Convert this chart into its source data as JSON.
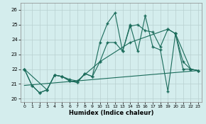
{
  "xlabel": "Humidex (Indice chaleur)",
  "background_color": "#d4eded",
  "grid_color": "#b8d0d0",
  "line_color": "#1a6b5a",
  "xlim": [
    -0.5,
    23.5
  ],
  "ylim": [
    19.8,
    26.5
  ],
  "yticks": [
    20,
    21,
    22,
    23,
    24,
    25,
    26
  ],
  "xticks": [
    0,
    1,
    2,
    3,
    4,
    5,
    6,
    7,
    8,
    9,
    10,
    11,
    12,
    13,
    14,
    15,
    16,
    17,
    18,
    19,
    20,
    21,
    22,
    23
  ],
  "line1_x": [
    0,
    1,
    2,
    3,
    4,
    5,
    6,
    7,
    8,
    9,
    10,
    11,
    12,
    13,
    14,
    15,
    16,
    17,
    18,
    19,
    20,
    21,
    22,
    23
  ],
  "line1_y": [
    22.0,
    20.9,
    20.4,
    20.6,
    21.6,
    21.5,
    21.2,
    21.1,
    21.7,
    21.5,
    23.8,
    25.1,
    25.8,
    23.2,
    24.9,
    25.0,
    24.6,
    24.5,
    23.5,
    24.7,
    24.4,
    22.5,
    22.0,
    21.9
  ],
  "line2_x": [
    0,
    1,
    2,
    3,
    4,
    5,
    6,
    7,
    8,
    9,
    10,
    11,
    12,
    13,
    14,
    15,
    16,
    17,
    18,
    19,
    20,
    21,
    22,
    23
  ],
  "line2_y": [
    22.0,
    20.9,
    20.4,
    20.6,
    21.6,
    21.5,
    21.2,
    21.1,
    21.7,
    21.5,
    22.5,
    23.8,
    23.8,
    23.2,
    25.0,
    23.2,
    25.6,
    23.5,
    23.3,
    20.5,
    24.4,
    22.0,
    22.0,
    21.9
  ],
  "line3_x": [
    0,
    3,
    4,
    5,
    6,
    7,
    10,
    14,
    19,
    20,
    22,
    23
  ],
  "line3_y": [
    22.0,
    20.6,
    21.6,
    21.5,
    21.3,
    21.2,
    22.5,
    23.8,
    24.7,
    24.4,
    22.0,
    21.9
  ],
  "line4_x": [
    0,
    23
  ],
  "line4_y": [
    20.9,
    21.9
  ],
  "marker_size": 2.5,
  "linewidth": 0.8
}
